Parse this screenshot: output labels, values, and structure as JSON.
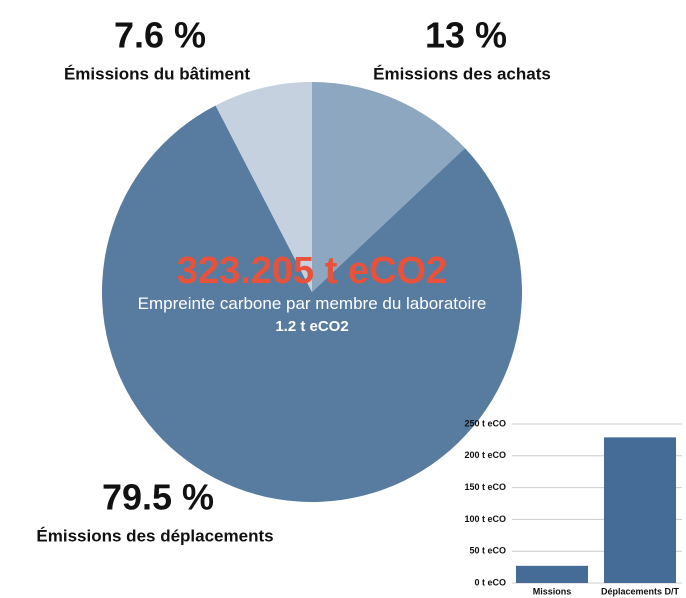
{
  "chart_data": [
    {
      "type": "pie",
      "categories": [
        "Émissions des achats",
        "Émissions des déplacements",
        "Émissions du bâtiment"
      ],
      "values": [
        13,
        79.5,
        7.6
      ],
      "value_labels": [
        "13 %",
        "79.5 %",
        "7.6 %"
      ],
      "colors": [
        "#8ea7c0",
        "#587ba0",
        "#c5d1df"
      ],
      "center_value": "323.205 t eCO2",
      "center_value_color": "#e8523a",
      "center_label": "Empreinte carbone par membre du laboratoire",
      "center_sub": "1.2 t eCO2"
    },
    {
      "type": "bar",
      "categories": [
        "Missions",
        "Déplacements D/T"
      ],
      "values": [
        27,
        229
      ],
      "color": "#456c97",
      "ylim": [
        0,
        250
      ],
      "yticks": [
        {
          "value": 0,
          "label": "0 t eCO"
        },
        {
          "value": 50,
          "label": "50 t eCO"
        },
        {
          "value": 100,
          "label": "100 t eCO"
        },
        {
          "value": 150,
          "label": "150 t eCO"
        },
        {
          "value": 200,
          "label": "200 t eCO"
        },
        {
          "value": 250,
          "label": "250 t eCO"
        }
      ],
      "grid": true
    }
  ]
}
